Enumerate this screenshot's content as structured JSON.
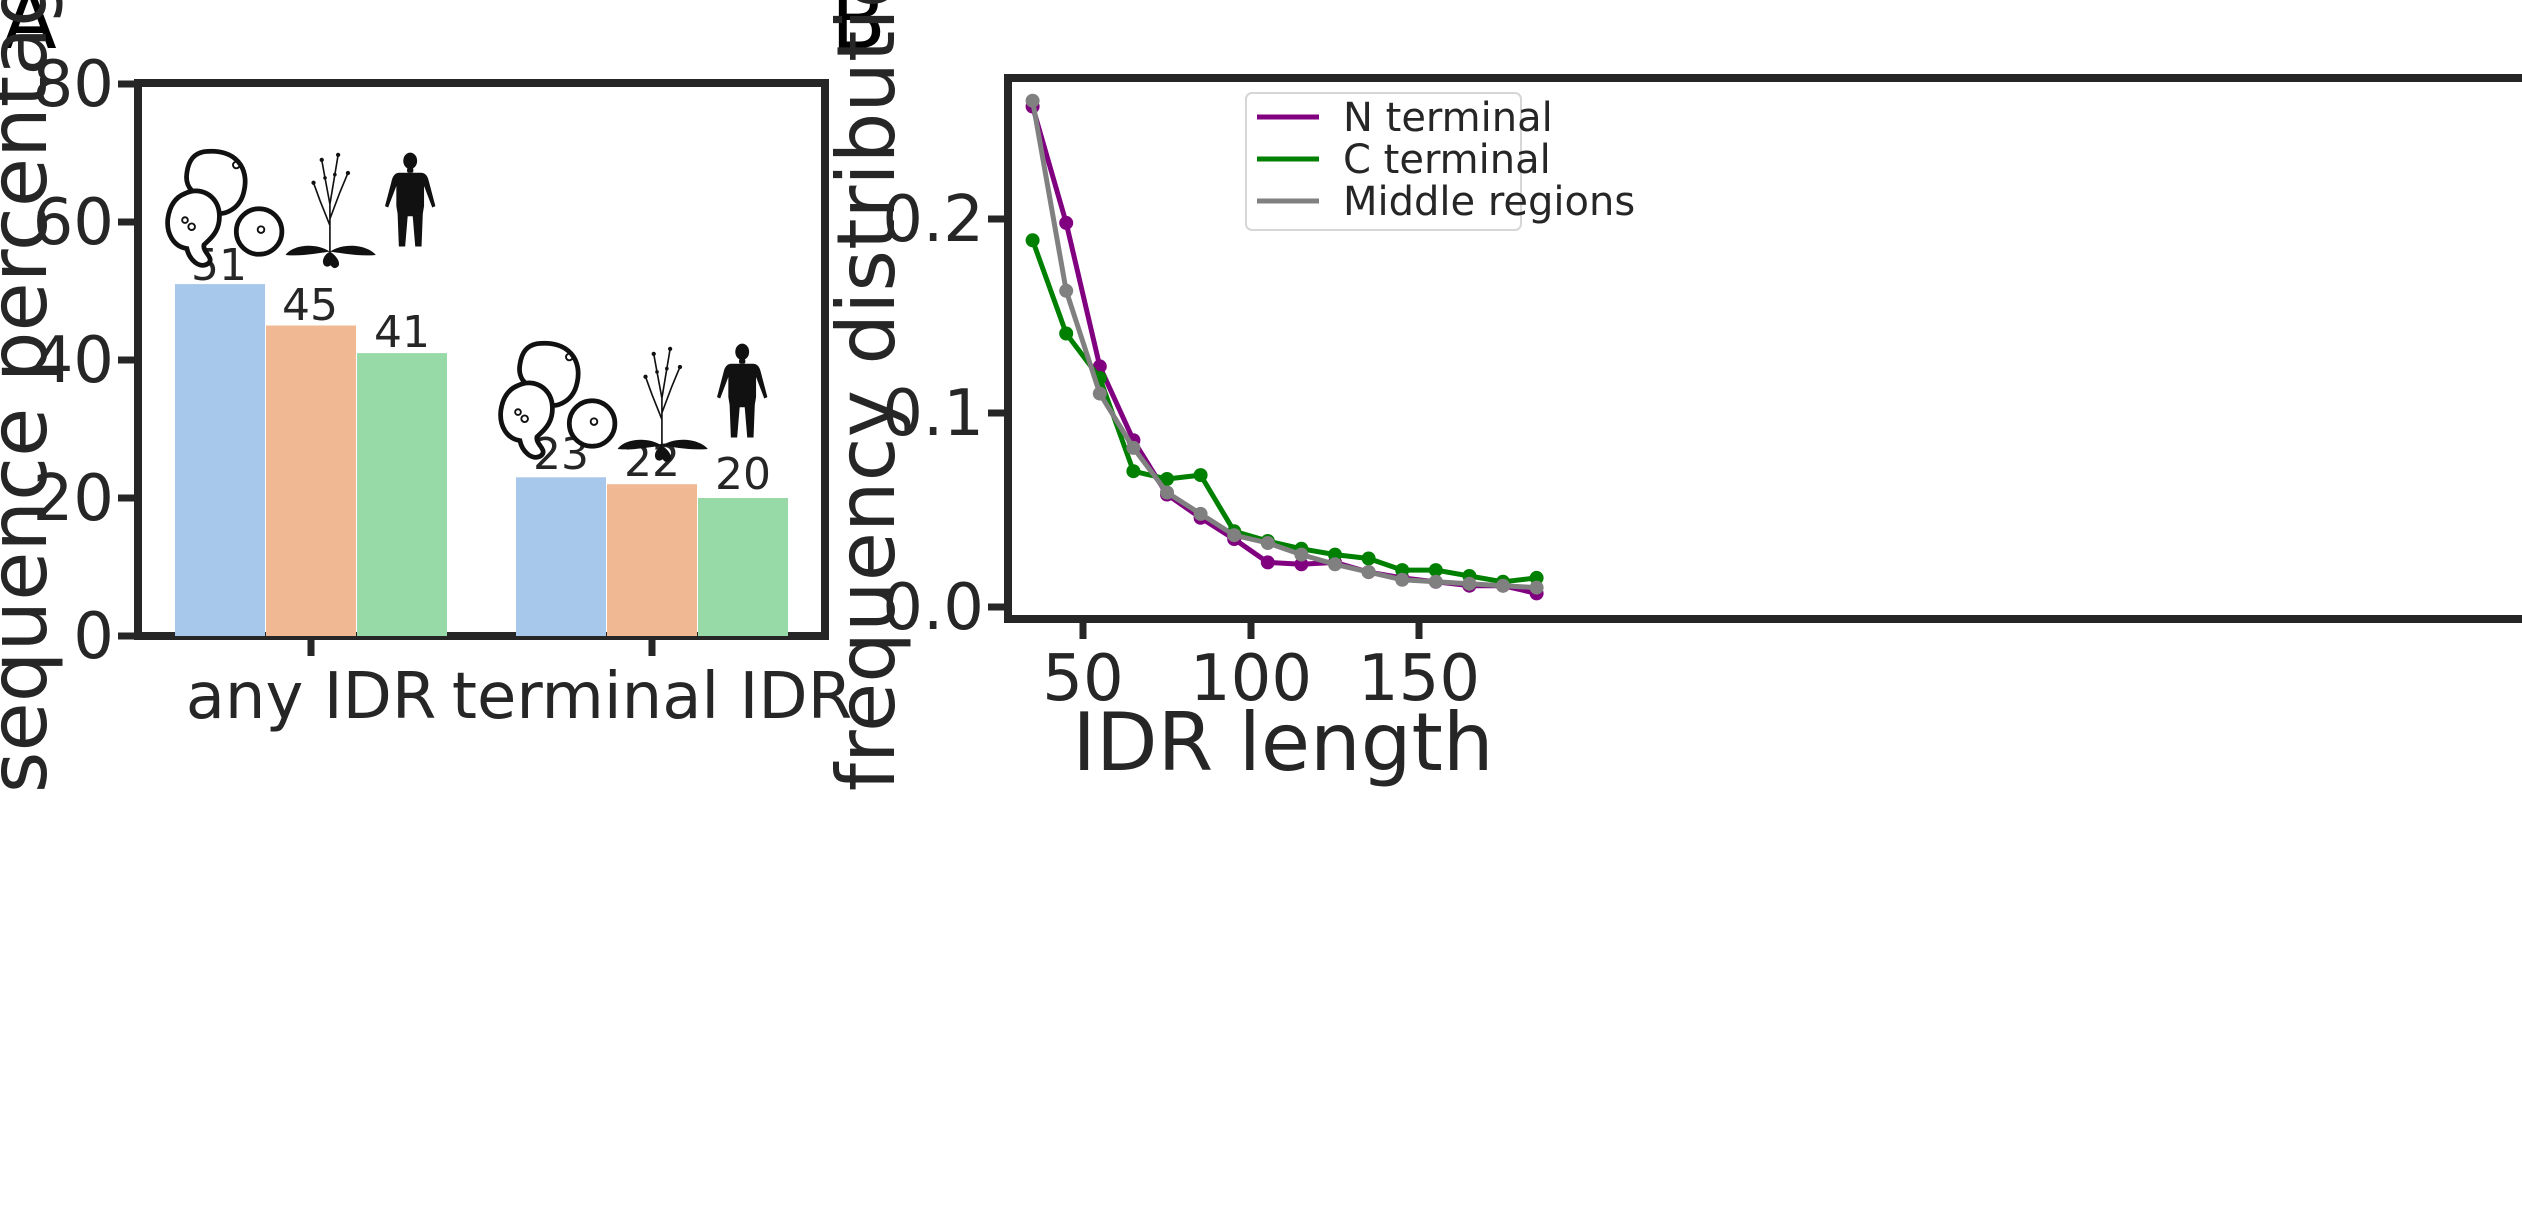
{
  "panels": {
    "A": {
      "letter": "A"
    },
    "B": {
      "letter": "B"
    }
  },
  "chart_data": [
    {
      "type": "bar",
      "panel": "A",
      "title": "",
      "xlabel": "",
      "ylabel": "sequence percentage",
      "categories": [
        "any IDR",
        "terminal IDR"
      ],
      "series": [
        {
          "values": [
            51,
            23
          ],
          "color": "#a8c8eb"
        },
        {
          "values": [
            45,
            22
          ],
          "color": "#f0b893"
        },
        {
          "values": [
            41,
            20
          ],
          "color": "#98d9a8"
        }
      ],
      "bar_labels": [
        [
          "51",
          "45",
          "41"
        ],
        [
          "23",
          "22",
          "20"
        ]
      ],
      "ylim": [
        0,
        80
      ],
      "yticks": [
        0,
        20,
        40,
        60,
        80
      ],
      "grid": false,
      "icons": [
        "yeast-cells-icon",
        "plant-icon",
        "human-figure-icon"
      ]
    },
    {
      "type": "line",
      "panel": "B",
      "title": "",
      "xlabel": "IDR length",
      "ylabel": "frequency distribution",
      "x": [
        35,
        45,
        55,
        65,
        75,
        85,
        95,
        105,
        115,
        125,
        135,
        145,
        155,
        165,
        175,
        185
      ],
      "series": [
        {
          "name": "N terminal",
          "color": "#800080",
          "values": [
            0.258,
            0.198,
            0.124,
            0.086,
            0.058,
            0.046,
            0.035,
            0.023,
            0.022,
            0.023,
            0.018,
            0.015,
            0.013,
            0.011,
            0.011,
            0.007
          ]
        },
        {
          "name": "C terminal",
          "color": "#008000",
          "values": [
            0.189,
            0.141,
            0.118,
            0.07,
            0.066,
            0.068,
            0.039,
            0.034,
            0.03,
            0.027,
            0.025,
            0.019,
            0.019,
            0.016,
            0.013,
            0.015
          ]
        },
        {
          "name": "Middle regions",
          "color": "#808080",
          "values": [
            0.261,
            0.163,
            0.11,
            0.082,
            0.059,
            0.048,
            0.037,
            0.033,
            0.027,
            0.022,
            0.018,
            0.014,
            0.013,
            0.012,
            0.011,
            0.01
          ]
        }
      ],
      "xlim": [
        28,
        192
      ],
      "ylim": [
        -0.006,
        0.274
      ],
      "xticks": [
        50,
        100,
        150
      ],
      "yticks": [
        0.0,
        0.1,
        0.2
      ],
      "ytick_labels": [
        "0.0",
        "0.1",
        "0.2"
      ],
      "legend": "top-right",
      "grid": false
    }
  ]
}
